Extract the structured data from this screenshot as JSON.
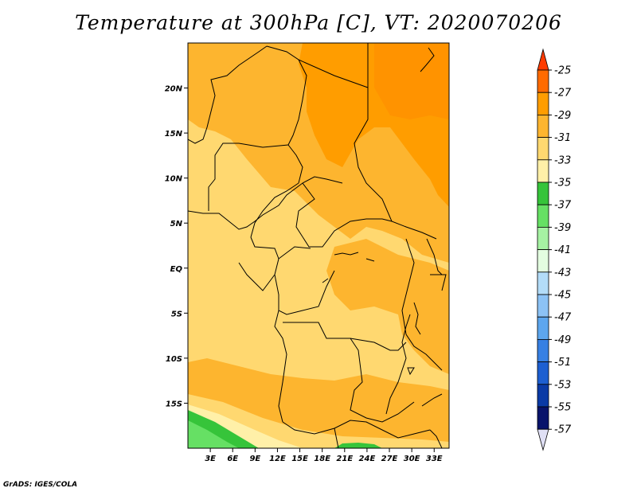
{
  "title": "Temperature at 300hPa [C], VT: 2020070206",
  "credit": "GrADS: IGES/COLA",
  "map": {
    "projection": "lat-lon",
    "lon_range": [
      0,
      35
    ],
    "lat_range": [
      -20,
      25
    ],
    "lat_ticks": [
      {
        "value": 20,
        "label": "20N"
      },
      {
        "value": 15,
        "label": "15N"
      },
      {
        "value": 10,
        "label": "10N"
      },
      {
        "value": 5,
        "label": "5N"
      },
      {
        "value": 0,
        "label": "EQ"
      },
      {
        "value": -5,
        "label": "5S"
      },
      {
        "value": -10,
        "label": "10S"
      },
      {
        "value": -15,
        "label": "15S"
      }
    ],
    "lon_ticks": [
      {
        "value": 3,
        "label": "3E"
      },
      {
        "value": 6,
        "label": "6E"
      },
      {
        "value": 9,
        "label": "9E"
      },
      {
        "value": 12,
        "label": "12E"
      },
      {
        "value": 15,
        "label": "15E"
      },
      {
        "value": 18,
        "label": "18E"
      },
      {
        "value": 21,
        "label": "21E"
      },
      {
        "value": 24,
        "label": "24E"
      },
      {
        "value": 27,
        "label": "27E"
      },
      {
        "value": 30,
        "label": "30E"
      },
      {
        "value": 33,
        "label": "33E"
      }
    ]
  },
  "colorbar": {
    "labels": [
      "-25",
      "-27",
      "-29",
      "-31",
      "-33",
      "-35",
      "-37",
      "-39",
      "-41",
      "-43",
      "-45",
      "-47",
      "-49",
      "-51",
      "-53",
      "-55",
      "-57"
    ],
    "colors": [
      "#ff3b00",
      "#ff6b00",
      "#ff9d00",
      "#fdb52f",
      "#ffd870",
      "#fff0a8",
      "#36c43a",
      "#66e064",
      "#a6f2a3",
      "#e3fde0",
      "#b3dcf8",
      "#8cc2f5",
      "#5da6ee",
      "#3780e3",
      "#1d5fd1",
      "#0a3aa6",
      "#08136b",
      "#e0e0f5"
    ]
  }
}
